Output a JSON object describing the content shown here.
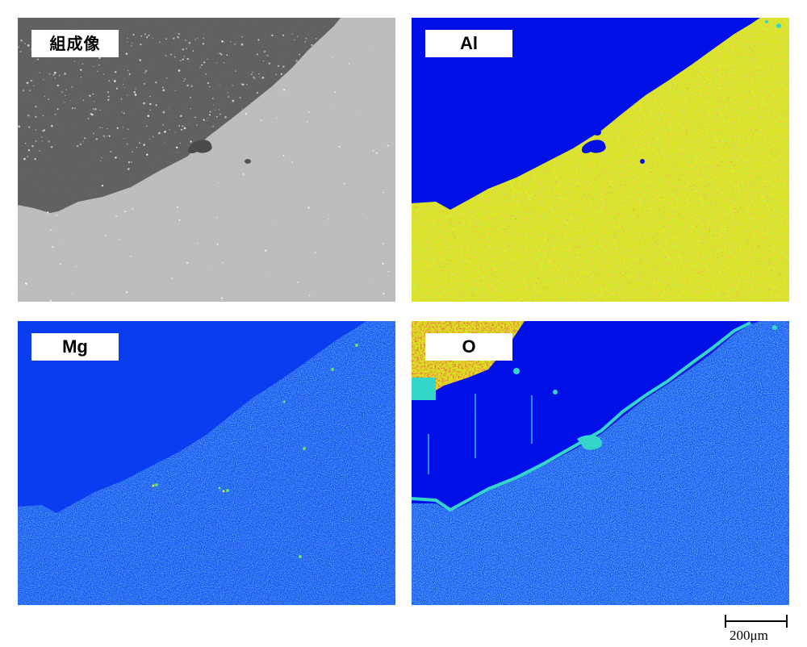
{
  "panels": {
    "composition": {
      "label": "組成像"
    },
    "al": {
      "label": "Al"
    },
    "mg": {
      "label": "Mg"
    },
    "o": {
      "label": "O"
    }
  },
  "scale_bar": {
    "label": "200μm"
  },
  "colors": {
    "comp_dark": "#555555",
    "comp_light": "#bdbdbd",
    "map_blue": "#0010e6",
    "map_mid_blue": "#1f55ee",
    "map_yellow": "#d8e61f",
    "map_red": "#e52a12",
    "map_cyan": "#33d6c8"
  }
}
